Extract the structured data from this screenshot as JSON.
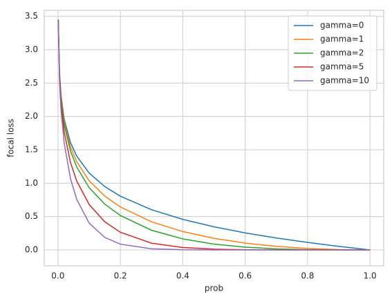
{
  "chart_data": {
    "type": "line",
    "x_label": "prob",
    "y_label": "focal loss",
    "x": [
      0.001,
      0.005,
      0.01,
      0.02,
      0.04,
      0.06,
      0.1,
      0.15,
      0.2,
      0.3,
      0.4,
      0.5,
      0.6,
      0.7,
      0.8,
      0.9,
      1.0
    ],
    "series": [
      {
        "name": "gamma=0",
        "color": "#1f77b4",
        "values": [
          3.454,
          2.649,
          2.303,
          1.956,
          1.609,
          1.407,
          1.151,
          0.949,
          0.805,
          0.602,
          0.458,
          0.347,
          0.255,
          0.178,
          0.112,
          0.053,
          0
        ]
      },
      {
        "name": "gamma=1",
        "color": "#ff7f0e",
        "values": [
          3.451,
          2.636,
          2.28,
          1.917,
          1.545,
          1.323,
          1.036,
          0.807,
          0.644,
          0.421,
          0.275,
          0.173,
          0.102,
          0.053,
          0.022,
          0.005,
          0
        ]
      },
      {
        "name": "gamma=2",
        "color": "#2ca02c",
        "values": [
          3.447,
          2.623,
          2.257,
          1.879,
          1.483,
          1.243,
          0.932,
          0.686,
          0.515,
          0.295,
          0.165,
          0.087,
          0.041,
          0.016,
          0.004,
          0.001,
          0
        ]
      },
      {
        "name": "gamma=5",
        "color": "#d62728",
        "values": [
          3.437,
          2.583,
          2.19,
          1.768,
          1.312,
          1.033,
          0.68,
          0.421,
          0.264,
          0.101,
          0.036,
          0.011,
          0.003,
          0.0004,
          0,
          0,
          0
        ]
      },
      {
        "name": "gamma=10",
        "color": "#9467bd",
        "values": [
          3.42,
          2.519,
          2.083,
          1.598,
          1.07,
          0.758,
          0.401,
          0.187,
          0.086,
          0.017,
          0.003,
          0.0003,
          0,
          0,
          0,
          0,
          0
        ]
      }
    ],
    "xlim": [
      -0.044,
      1.044
    ],
    "ylim": [
      -0.238,
      3.59
    ],
    "xticks": [
      {
        "value": 0,
        "label": "0.0"
      },
      0.2,
      0.4,
      0.6,
      0.8,
      {
        "value": 1,
        "label": "1.0"
      }
    ],
    "yticks": [
      {
        "value": 0,
        "label": "0.0"
      },
      0.5,
      {
        "value": 1,
        "label": "1.0"
      },
      1.5,
      {
        "value": 2,
        "label": "2.0"
      },
      2.5,
      {
        "value": 3,
        "label": "3.0"
      },
      3.5
    ],
    "grid": true,
    "legend": "upper right"
  }
}
